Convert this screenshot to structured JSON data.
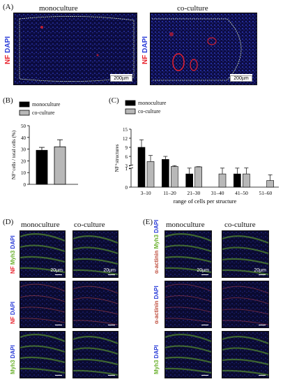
{
  "panel_a": {
    "letter": "(A)",
    "left_title": "monoculture",
    "right_title": "co-culture",
    "stain_nf": "NF",
    "stain_dapi": "DAPI",
    "scale": "200µm"
  },
  "panel_d": {
    "letter": "(D)",
    "left_title": "monoculture",
    "right_title": "co-culture",
    "row_labels": [
      {
        "a": "NF",
        "b": "Myh3",
        "c": "DAPI"
      },
      {
        "a": "NF",
        "b": "DAPI"
      },
      {
        "a": "Myh3",
        "b": "DAPI"
      }
    ],
    "scale": "20µm"
  },
  "panel_e": {
    "letter": "(E)",
    "left_title": "monoculture",
    "right_title": "co-culture",
    "row_labels": [
      {
        "a": "α-actinin",
        "b": "Myh3",
        "c": "DAPI"
      },
      {
        "a": "α-actinin",
        "b": "DAPI"
      },
      {
        "a": "Myh3",
        "b": "DAPI"
      }
    ],
    "scale": "20µm"
  },
  "colors": {
    "mono": "#000000",
    "co": "#b8b8b8",
    "nf": "#e8202a",
    "dapi": "#2a3cd8",
    "myh3": "#6ab02c"
  },
  "chart_data": [
    {
      "panel": "(B)",
      "type": "bar",
      "categories": [
        "monoculture",
        "co-culture"
      ],
      "values": [
        29,
        32
      ],
      "errors": [
        2.5,
        6
      ],
      "ylabel": "NF⁺cells / total cells (%)",
      "ylim": [
        0,
        50
      ],
      "yticks": [
        0,
        10,
        20,
        30,
        40,
        50
      ],
      "legend": [
        "monoculture",
        "co-culture"
      ],
      "legend_position": "top"
    },
    {
      "panel": "(C)",
      "type": "bar",
      "categories": [
        "3–10",
        "11–20",
        "21–30",
        "31–40",
        "41–50",
        "51–60"
      ],
      "series": [
        {
          "name": "monoculture",
          "values": [
            9,
            5,
            0.7,
            0,
            0.7,
            0
          ],
          "errors": [
            2.5,
            1,
            0.4,
            0,
            0.4,
            0
          ]
        },
        {
          "name": "co-culture",
          "values": [
            4.3,
            2.3,
            2,
            0.7,
            0.7,
            0.35
          ],
          "errors": [
            2,
            0.6,
            0.15,
            0.4,
            0.5,
            0.3
          ]
        }
      ],
      "xlabel": "range of cells per structure",
      "ylabel": "NF⁺structures",
      "yticks_upper": [
        3,
        6,
        9,
        12,
        15
      ],
      "yticks_lower": [
        0,
        1
      ],
      "axis_break": [
        1,
        3
      ],
      "legend": [
        "monoculture",
        "co-culture"
      ],
      "legend_position": "top-left"
    }
  ]
}
